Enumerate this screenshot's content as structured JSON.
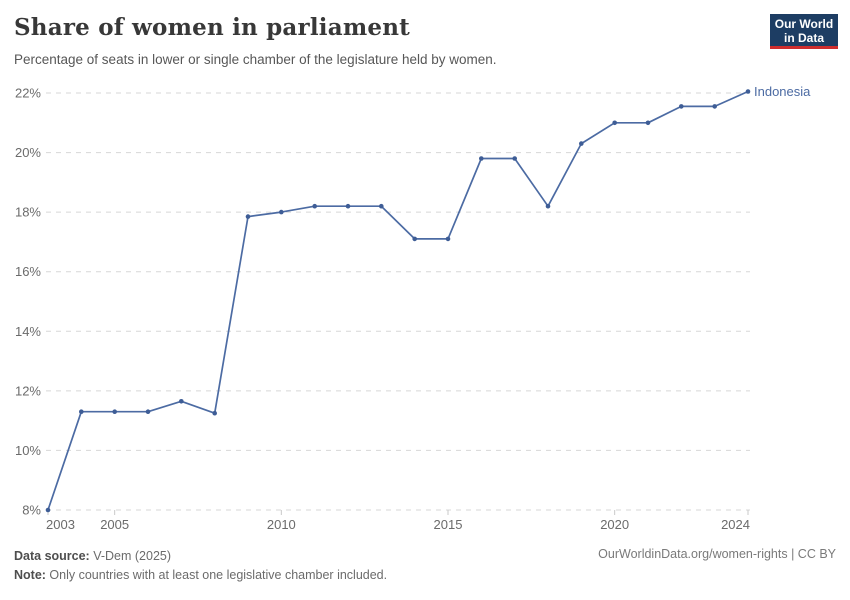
{
  "header": {
    "title": "Share of women in parliament",
    "subtitle": "Percentage of seats in lower or single chamber of the legislature held by women."
  },
  "logo": {
    "line1": "Our World",
    "line2": "in Data",
    "bg_color": "#1d3d63",
    "accent_color": "#cf2d2d"
  },
  "chart_data": {
    "type": "line",
    "title": "Share of women in parliament",
    "subtitle": "Percentage of seats in lower or single chamber of the legislature held by women.",
    "x": [
      2003,
      2004,
      2005,
      2006,
      2007,
      2008,
      2009,
      2010,
      2011,
      2012,
      2013,
      2014,
      2015,
      2016,
      2017,
      2018,
      2019,
      2020,
      2021,
      2022,
      2023,
      2024
    ],
    "series": [
      {
        "name": "Indonesia",
        "color": "#4c6ba3",
        "marker_color": "#3e5d96",
        "values": [
          8,
          11.3,
          11.3,
          11.3,
          11.65,
          11.25,
          17.85,
          18,
          18.2,
          18.2,
          18.2,
          17.1,
          17.1,
          19.8,
          19.8,
          18.2,
          20.3,
          21,
          21,
          21.55,
          21.55,
          22.05
        ]
      }
    ],
    "ylim": [
      8,
      22
    ],
    "yticks": [
      8,
      10,
      12,
      14,
      16,
      18,
      20,
      22
    ],
    "ytick_suffix": "%",
    "xticks": [
      2003,
      2005,
      2010,
      2015,
      2020,
      2024
    ],
    "grid": "horizontal-dashed",
    "gridline_color": "#d7d7d7",
    "tick_label_color": "#6b6b6b",
    "legend_position": "end-of-line-label"
  },
  "footer": {
    "source_label": "Data source:",
    "source_value": " V-Dem (2025)",
    "note_label": "Note:",
    "note_value": " Only countries with at least one legislative chamber included.",
    "credit": "OurWorldinData.org/women-rights | CC BY"
  }
}
